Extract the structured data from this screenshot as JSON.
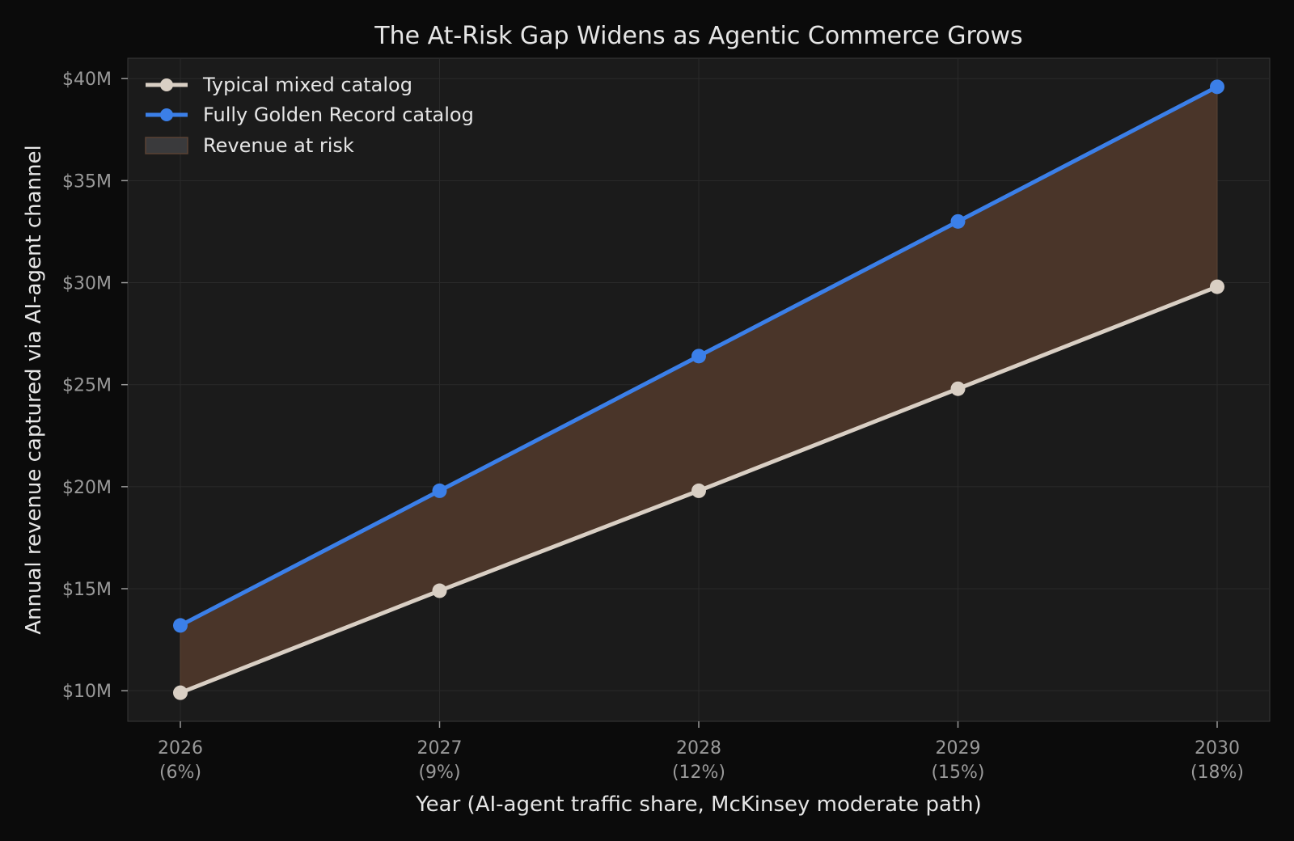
{
  "chart_data": {
    "type": "line",
    "title": "The At-Risk Gap Widens as Agentic Commerce Grows",
    "xlabel": "Year (AI-agent traffic share, McKinsey moderate path)",
    "ylabel": "Annual revenue captured via AI-agent channel",
    "categories": [
      "2026",
      "2027",
      "2028",
      "2029",
      "2030"
    ],
    "category_sublabels": [
      "(6%)",
      "(9%)",
      "(12%)",
      "(15%)",
      "(18%)"
    ],
    "ylim": [
      8.5,
      41
    ],
    "yticks": [
      10,
      15,
      20,
      25,
      30,
      35,
      40
    ],
    "ytick_labels": [
      "$10M",
      "$15M",
      "$20M",
      "$25M",
      "$30M",
      "$35M",
      "$40M"
    ],
    "grid": true,
    "legend_position": "top-left",
    "series": [
      {
        "name": "Typical mixed catalog",
        "values": [
          9.9,
          14.9,
          19.8,
          24.8,
          29.8
        ],
        "color": "#d9cfc4"
      },
      {
        "name": "Fully Golden Record catalog",
        "values": [
          13.2,
          19.8,
          26.4,
          33.0,
          39.6
        ],
        "color": "#3b7fe8"
      }
    ],
    "fill": {
      "name": "Revenue at risk",
      "color": "#4a3529"
    },
    "colors": {
      "background": "#0b0b0b",
      "plot_background": "#1b1b1b",
      "grid": "#2a2a2a",
      "tick_text": "#9a9a9a",
      "label_text": "#e6e6e6"
    }
  }
}
